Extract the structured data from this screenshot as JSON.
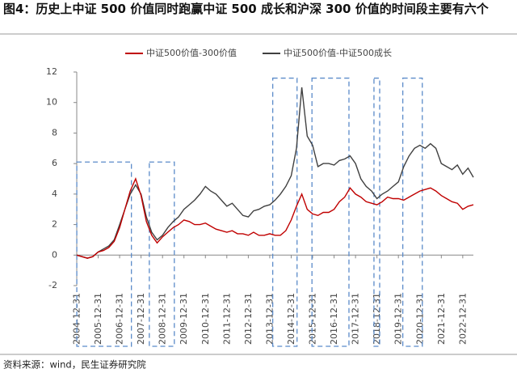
{
  "chart_data": {
    "type": "line",
    "title": "图4：历史上中证 500 价值同时跑赢中证 500 成长和沪深 300 价值的时间段主要有六个",
    "source": "资料来源：wind，民生证券研究院",
    "x": [
      "2004-12-31",
      "2005-03-31",
      "2005-06-30",
      "2005-09-30",
      "2005-12-31",
      "2006-03-31",
      "2006-06-30",
      "2006-09-30",
      "2006-12-31",
      "2007-03-31",
      "2007-06-30",
      "2007-09-30",
      "2007-12-31",
      "2008-03-31",
      "2008-06-30",
      "2008-09-30",
      "2008-12-31",
      "2009-03-31",
      "2009-06-30",
      "2009-09-30",
      "2009-12-31",
      "2010-03-31",
      "2010-06-30",
      "2010-09-30",
      "2010-12-31",
      "2011-03-31",
      "2011-06-30",
      "2011-09-30",
      "2011-12-31",
      "2012-03-31",
      "2012-06-30",
      "2012-09-30",
      "2012-12-31",
      "2013-03-31",
      "2013-06-30",
      "2013-09-30",
      "2013-12-31",
      "2014-03-31",
      "2014-06-30",
      "2014-09-30",
      "2014-12-31",
      "2015-03-31",
      "2015-06-30",
      "2015-09-30",
      "2015-12-31",
      "2016-03-31",
      "2016-06-30",
      "2016-09-30",
      "2016-12-31",
      "2017-03-31",
      "2017-06-30",
      "2017-09-30",
      "2017-12-31",
      "2018-03-31",
      "2018-06-30",
      "2018-09-30",
      "2018-12-31",
      "2019-03-31",
      "2019-06-30",
      "2019-09-30",
      "2019-12-31",
      "2020-03-31",
      "2020-06-30",
      "2020-09-30",
      "2020-12-31",
      "2021-03-31",
      "2021-06-30",
      "2021-09-30",
      "2021-12-31",
      "2022-03-31",
      "2022-06-30",
      "2022-09-30",
      "2022-12-31",
      "2023-03-31",
      "2023-06-30"
    ],
    "series": [
      {
        "name": "中证500价值-300价值",
        "color": "#c00000",
        "values": [
          0,
          -0.1,
          -0.2,
          -0.1,
          0.2,
          0.3,
          0.5,
          0.9,
          1.8,
          3.0,
          4.2,
          5.0,
          3.9,
          2.2,
          1.3,
          0.8,
          1.2,
          1.5,
          1.8,
          2.0,
          2.3,
          2.2,
          2.0,
          2.0,
          2.1,
          1.9,
          1.7,
          1.6,
          1.5,
          1.6,
          1.4,
          1.4,
          1.3,
          1.5,
          1.3,
          1.3,
          1.4,
          1.3,
          1.3,
          1.6,
          2.3,
          3.2,
          4.0,
          3.0,
          2.7,
          2.6,
          2.8,
          2.8,
          3.0,
          3.5,
          3.8,
          4.4,
          4.0,
          3.8,
          3.5,
          3.4,
          3.3,
          3.5,
          3.8,
          3.7,
          3.7,
          3.6,
          3.8,
          4.0,
          4.2,
          4.3,
          4.4,
          4.2,
          3.9,
          3.7,
          3.5,
          3.4,
          3.0,
          3.2,
          3.3
        ]
      },
      {
        "name": "中证500价值-中证500成长",
        "color": "#404040",
        "values": [
          0,
          -0.1,
          -0.2,
          -0.1,
          0.2,
          0.4,
          0.6,
          1.0,
          2.0,
          3.0,
          4.0,
          4.6,
          4.0,
          2.5,
          1.5,
          1.0,
          1.3,
          1.8,
          2.2,
          2.5,
          3.0,
          3.3,
          3.6,
          4.0,
          4.5,
          4.2,
          4.0,
          3.6,
          3.2,
          3.4,
          3.0,
          2.6,
          2.5,
          2.9,
          3.0,
          3.2,
          3.3,
          3.6,
          4.0,
          4.5,
          5.2,
          7.0,
          11.0,
          7.8,
          7.2,
          5.8,
          6.0,
          6.0,
          5.9,
          6.2,
          6.3,
          6.5,
          6.0,
          5.0,
          4.5,
          4.2,
          3.7,
          4.0,
          4.2,
          4.5,
          4.8,
          5.8,
          6.5,
          7.0,
          7.2,
          7.0,
          7.3,
          7.0,
          6.0,
          5.8,
          5.6,
          5.9,
          5.3,
          5.7,
          5.1
        ]
      }
    ],
    "xlim": [
      "2004-12-31",
      "2023-06-30"
    ],
    "xticks": [
      "2004-12-31",
      "2005-12-31",
      "2006-12-31",
      "2007-12-31",
      "2008-12-31",
      "2009-12-31",
      "2010-12-31",
      "2011-12-31",
      "2012-12-31",
      "2013-12-31",
      "2014-12-31",
      "2015-12-31",
      "2016-12-31",
      "2017-12-31",
      "2018-12-31",
      "2019-12-31",
      "2020-12-31",
      "2021-12-31",
      "2022-12-31"
    ],
    "ylim": [
      -2,
      12
    ],
    "yticks": [
      -2,
      0,
      2,
      4,
      6,
      8,
      10,
      12
    ],
    "highlights": [
      {
        "x": [
          "2005-01-01",
          "2007-07-20"
        ],
        "top": 6.1
      },
      {
        "x": [
          "2008-05-20",
          "2009-07-20"
        ],
        "top": 6.1
      },
      {
        "x": [
          "2014-02-20",
          "2015-04-10"
        ],
        "top": 11.6
      },
      {
        "x": [
          "2015-12-20",
          "2017-09-10"
        ],
        "top": 11.6
      },
      {
        "x": [
          "2018-11-10",
          "2019-02-15"
        ],
        "top": 11.6
      },
      {
        "x": [
          "2020-03-15",
          "2021-02-10"
        ],
        "top": 11.6
      }
    ],
    "highlight_color": "#5b8bc9"
  }
}
